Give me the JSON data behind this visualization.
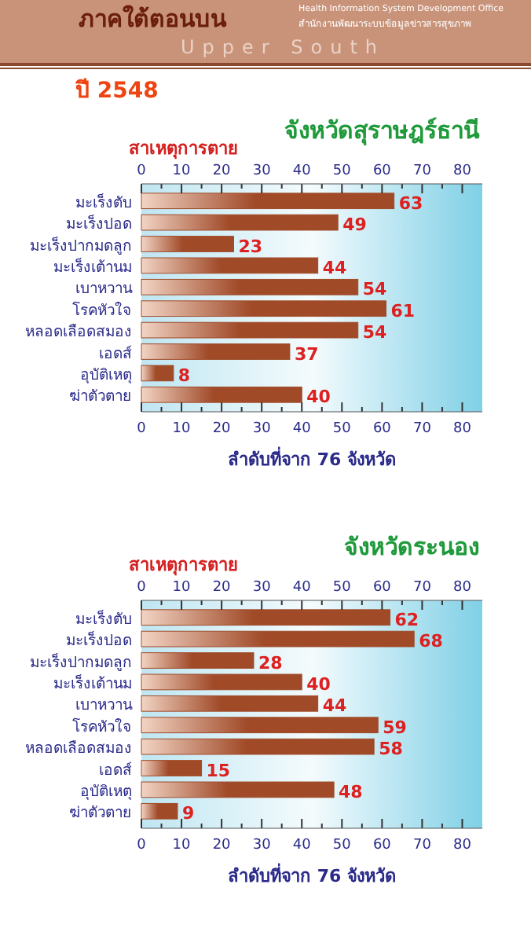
{
  "chart_data": [
    {
      "type": "bar",
      "orientation": "horizontal",
      "title": "จังหวัดสุราษฎร์ธานี",
      "ylabel": "สาเหตุการตาย",
      "xlabel": "ลำดับที่จาก 76 จังหวัด",
      "annotations": [
        "ภาคใต้ตอนบน",
        "Upper South",
        "Health Information System Development Office",
        "สำนักงานพัฒนาระบบข้อมูลข่าวสารสุขภาพ",
        "ปี 2548"
      ],
      "categories": [
        "มะเร็งตับ",
        "มะเร็งปอด",
        "มะเร็งปากมดลูก",
        "มะเร็งเต้านม",
        "เบาหวาน",
        "โรคหัวใจ",
        "หลอดเลือดสมอง",
        "เอดส์",
        "อุบัติเหตุ",
        "ฆ่าตัวตาย"
      ],
      "values": [
        63,
        49,
        23,
        44,
        54,
        61,
        54,
        37,
        8,
        40
      ],
      "color": "#a04a28",
      "data_labels": true,
      "grid": false,
      "xlim": [
        0,
        85
      ],
      "xticks": [
        0,
        {
          "value": 5,
          "label": null
        },
        10,
        {
          "value": 15,
          "label": null
        },
        20,
        {
          "value": 25,
          "label": null
        },
        30,
        {
          "value": 35,
          "label": null
        },
        40,
        {
          "value": 45,
          "label": null
        },
        50,
        {
          "value": 55,
          "label": null
        },
        60,
        {
          "value": 65,
          "label": null
        },
        70,
        {
          "value": 75,
          "label": null
        },
        80
      ],
      "x2lim": [
        0,
        85
      ],
      "x2ticks": [
        0,
        {
          "value": 5,
          "label": null
        },
        10,
        {
          "value": 15,
          "label": null
        },
        20,
        {
          "value": 25,
          "label": null
        },
        30,
        {
          "value": 35,
          "label": null
        },
        40,
        {
          "value": 45,
          "label": null
        },
        50,
        {
          "value": 55,
          "label": null
        },
        60,
        {
          "value": 65,
          "label": null
        },
        70,
        {
          "value": 75,
          "label": null
        },
        80
      ]
    },
    {
      "type": "bar",
      "orientation": "horizontal",
      "title": "จังหวัดระนอง",
      "ylabel": "สาเหตุการตาย",
      "xlabel": "ลำดับที่จาก 76 จังหวัด",
      "categories": [
        "มะเร็งตับ",
        "มะเร็งปอด",
        "มะเร็งปากมดลูก",
        "มะเร็งเต้านม",
        "เบาหวาน",
        "โรคหัวใจ",
        "หลอดเลือดสมอง",
        "เอดส์",
        "อุบัติเหตุ",
        "ฆ่าตัวตาย"
      ],
      "values": [
        62,
        68,
        28,
        40,
        44,
        59,
        58,
        15,
        48,
        9
      ],
      "color": "#a04a28",
      "data_labels": true,
      "grid": false,
      "xlim": [
        0,
        85
      ],
      "xticks": [
        0,
        {
          "value": 5,
          "label": null
        },
        10,
        {
          "value": 15,
          "label": null
        },
        20,
        {
          "value": 25,
          "label": null
        },
        30,
        {
          "value": 35,
          "label": null
        },
        40,
        {
          "value": 45,
          "label": null
        },
        50,
        {
          "value": 55,
          "label": null
        },
        60,
        {
          "value": 65,
          "label": null
        },
        70,
        {
          "value": 75,
          "label": null
        },
        80
      ],
      "x2lim": [
        0,
        85
      ],
      "x2ticks": [
        0,
        {
          "value": 5,
          "label": null
        },
        10,
        {
          "value": 15,
          "label": null
        },
        20,
        {
          "value": 25,
          "label": null
        },
        30,
        {
          "value": 35,
          "label": null
        },
        40,
        {
          "value": 45,
          "label": null
        },
        50,
        {
          "value": 55,
          "label": null
        },
        60,
        {
          "value": 65,
          "label": null
        },
        70,
        {
          "value": 75,
          "label": null
        },
        80
      ]
    }
  ]
}
